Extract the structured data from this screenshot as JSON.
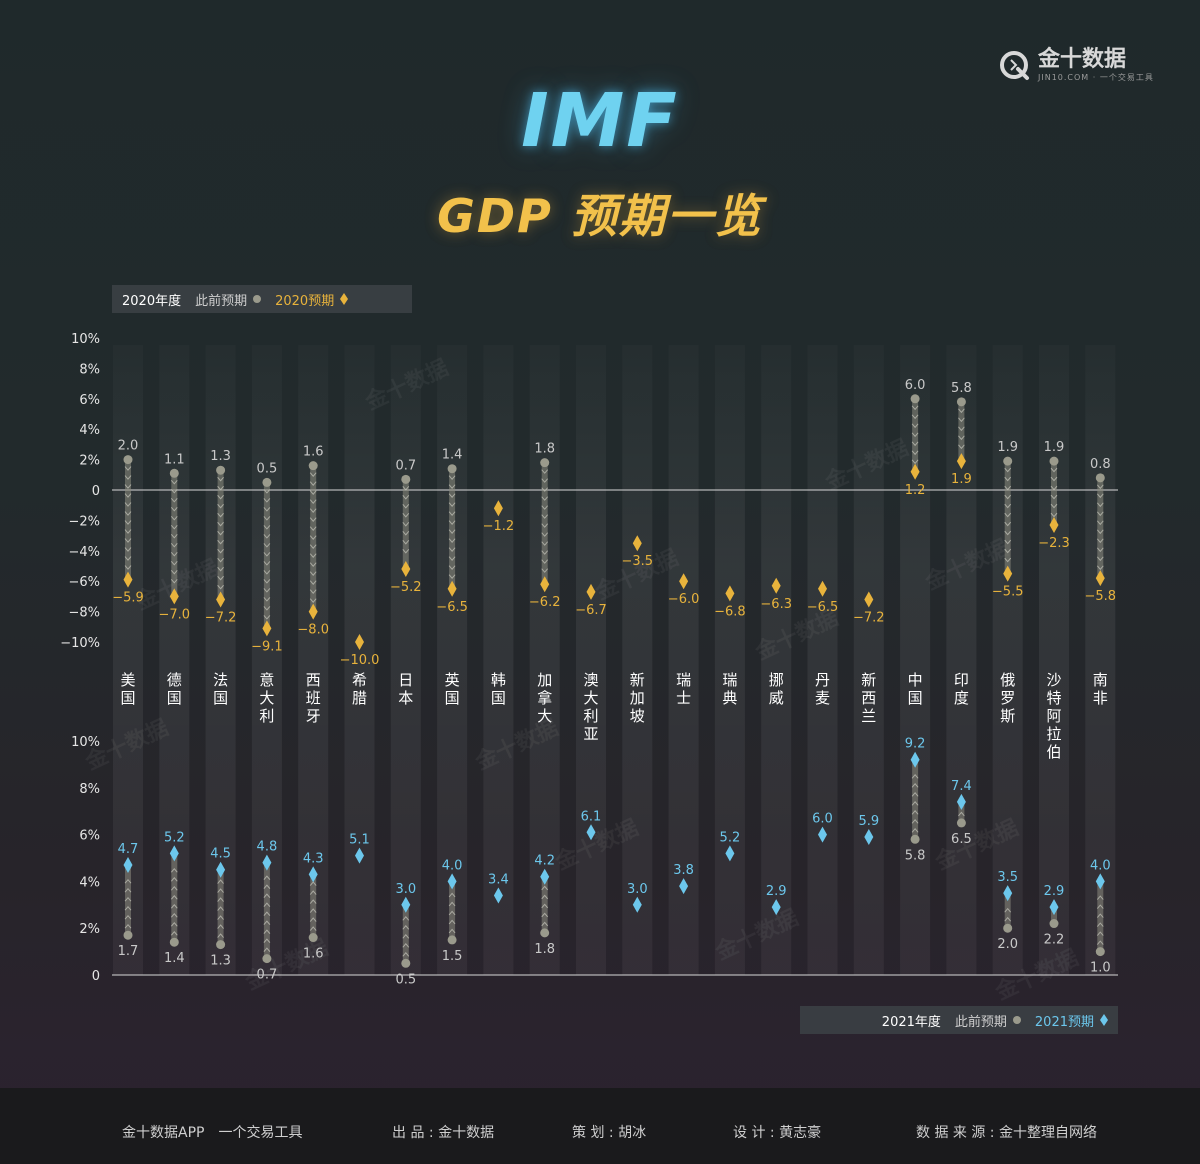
{
  "title": "IMF",
  "subtitle": "GDP 预期一览",
  "brand": {
    "name": "金十数据",
    "url": "JIN10.COM · 一个交易工具",
    "watermark": "金十数据"
  },
  "legend_top": {
    "year": "2020年度",
    "prev": "此前预期",
    "cur": "2020预期"
  },
  "legend_bottom": {
    "year": "2021年度",
    "prev": "此前预期",
    "cur": "2021预期"
  },
  "colors": {
    "gold": "#e8b33c",
    "blue": "#6cc7ec",
    "grey": "#9a9a8c",
    "label_grey": "#c9c9c9"
  },
  "chart_data": [
    {
      "type": "range-dot",
      "title": "2020年度",
      "ylim": [
        -10,
        10
      ],
      "yticks": [
        "10%",
        "8%",
        "6%",
        "4%",
        "2%",
        "0",
        "−2%",
        "−4%",
        "−6%",
        "−8%",
        "−10%"
      ],
      "categories": [
        "美国",
        "德国",
        "法国",
        "意大利",
        "西班牙",
        "希腊",
        "日本",
        "英国",
        "韩国",
        "加拿大",
        "澳大利亚",
        "新加坡",
        "瑞士",
        "瑞典",
        "挪威",
        "丹麦",
        "新西兰",
        "中国",
        "印度",
        "俄罗斯",
        "沙特阿拉伯",
        "南非"
      ],
      "series": [
        {
          "name": "此前预期",
          "values": [
            2.0,
            1.1,
            1.3,
            0.5,
            1.6,
            null,
            0.7,
            1.4,
            null,
            1.8,
            null,
            null,
            null,
            null,
            null,
            null,
            null,
            6.0,
            5.8,
            1.9,
            1.9,
            0.8
          ],
          "labels": [
            "2.0",
            "1.1",
            "1.3",
            "0.5",
            "1.6",
            "",
            "0.7",
            "1.4",
            "",
            "1.8",
            "",
            "",
            "",
            "",
            "",
            "",
            "",
            "6.0",
            "5.8",
            "1.9",
            "1.9",
            "0.8"
          ]
        },
        {
          "name": "2020预期",
          "values": [
            -5.9,
            -7.0,
            -7.2,
            -9.1,
            -8.0,
            -10.0,
            -5.2,
            -6.5,
            -1.2,
            -6.2,
            -6.7,
            -3.5,
            -6.0,
            -6.8,
            -6.3,
            -6.5,
            -7.2,
            1.2,
            1.9,
            -5.5,
            -2.3,
            -5.8
          ],
          "labels": [
            "−5.9",
            "−7.0",
            "−7.2",
            "−9.1",
            "−8.0",
            "−10.0",
            "−5.2",
            "−6.5",
            "−1.2",
            "−6.2",
            "−6.7",
            "−3.5",
            "−6.0",
            "−6.8",
            "−6.3",
            "−6.5",
            "−7.2",
            "1.2",
            "1.9",
            "−5.5",
            "−2.3",
            "−5.8"
          ]
        }
      ]
    },
    {
      "type": "range-dot",
      "title": "2021年度",
      "ylim": [
        0,
        10
      ],
      "yticks": [
        "10%",
        "8%",
        "6%",
        "4%",
        "2%",
        "0"
      ],
      "categories": [
        "美国",
        "德国",
        "法国",
        "意大利",
        "西班牙",
        "希腊",
        "日本",
        "英国",
        "韩国",
        "加拿大",
        "澳大利亚",
        "新加坡",
        "瑞士",
        "瑞典",
        "挪威",
        "丹麦",
        "新西兰",
        "中国",
        "印度",
        "俄罗斯",
        "沙特阿拉伯",
        "南非"
      ],
      "series": [
        {
          "name": "此前预期",
          "values": [
            1.7,
            1.4,
            1.3,
            0.7,
            1.6,
            null,
            0.5,
            1.5,
            null,
            1.8,
            null,
            null,
            null,
            null,
            null,
            null,
            null,
            5.8,
            6.5,
            2.0,
            2.2,
            1.0
          ],
          "labels": [
            "1.7",
            "1.4",
            "1.3",
            "0.7",
            "1.6",
            "",
            "0.5",
            "1.5",
            "",
            "1.8",
            "",
            "",
            "",
            "",
            "",
            "",
            "",
            "5.8",
            "6.5",
            "2.0",
            "2.2",
            "1.0"
          ]
        },
        {
          "name": "2021预期",
          "values": [
            4.7,
            5.2,
            4.5,
            4.8,
            4.3,
            5.1,
            3.0,
            4.0,
            3.4,
            4.2,
            6.1,
            3.0,
            3.8,
            5.2,
            2.9,
            6.0,
            5.9,
            9.2,
            7.4,
            3.5,
            2.9,
            4.0
          ],
          "labels": [
            "4.7",
            "5.2",
            "4.5",
            "4.8",
            "4.3",
            "5.1",
            "3.0",
            "4.0",
            "3.4",
            "4.2",
            "6.1",
            "3.0",
            "3.8",
            "5.2",
            "2.9",
            "6.0",
            "5.9",
            "9.2",
            "7.4",
            "3.5",
            "2.9",
            "4.0"
          ]
        }
      ]
    }
  ],
  "footer": {
    "app": "金十数据APP　一个交易工具",
    "producer": "出 品 : 金十数据",
    "planner": "策 划 :  胡冰",
    "designer": "设 计 : 黄志豪",
    "source": "数 据 来 源 :    金十整理自网络"
  }
}
